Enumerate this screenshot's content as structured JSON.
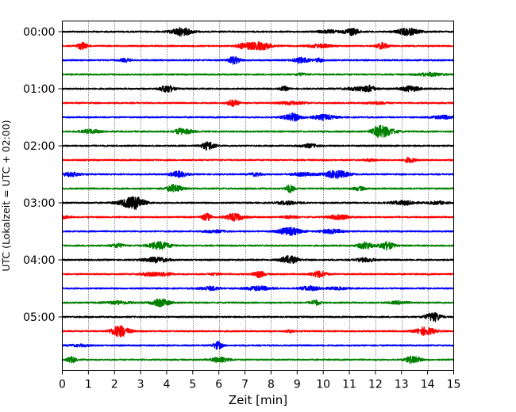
{
  "chart_data": {
    "type": "line",
    "title": "",
    "xlabel": "Zeit  [min]",
    "ylabel": "UTC (Lokalzeit = UTC + 02:00)",
    "xlim": [
      0,
      15
    ],
    "x_ticks": [
      0,
      1,
      2,
      3,
      4,
      5,
      6,
      7,
      8,
      9,
      10,
      11,
      12,
      13,
      14,
      15
    ],
    "y_tick_labels": [
      "00:00",
      "01:00",
      "02:00",
      "03:00",
      "04:00",
      "05:00"
    ],
    "grid": "vertical dotted",
    "trace_interval_minutes": 15,
    "trace_colors": [
      "#000000",
      "#ff0000",
      "#0000ff",
      "#008000"
    ],
    "traces": [
      {
        "start": "00:00",
        "color": "#000000"
      },
      {
        "start": "00:15",
        "color": "#ff0000"
      },
      {
        "start": "00:30",
        "color": "#0000ff"
      },
      {
        "start": "00:45",
        "color": "#008000"
      },
      {
        "start": "01:00",
        "color": "#000000"
      },
      {
        "start": "01:15",
        "color": "#ff0000"
      },
      {
        "start": "01:30",
        "color": "#0000ff"
      },
      {
        "start": "01:45",
        "color": "#008000"
      },
      {
        "start": "02:00",
        "color": "#000000"
      },
      {
        "start": "02:15",
        "color": "#ff0000"
      },
      {
        "start": "02:30",
        "color": "#0000ff"
      },
      {
        "start": "02:45",
        "color": "#008000"
      },
      {
        "start": "03:00",
        "color": "#000000"
      },
      {
        "start": "03:15",
        "color": "#ff0000"
      },
      {
        "start": "03:30",
        "color": "#0000ff"
      },
      {
        "start": "03:45",
        "color": "#008000"
      },
      {
        "start": "04:00",
        "color": "#000000"
      },
      {
        "start": "04:15",
        "color": "#ff0000"
      },
      {
        "start": "04:30",
        "color": "#0000ff"
      },
      {
        "start": "04:45",
        "color": "#008000"
      },
      {
        "start": "05:00",
        "color": "#000000"
      },
      {
        "start": "05:15",
        "color": "#ff0000"
      },
      {
        "start": "05:30",
        "color": "#0000ff"
      },
      {
        "start": "05:45",
        "color": "#008000"
      }
    ]
  }
}
